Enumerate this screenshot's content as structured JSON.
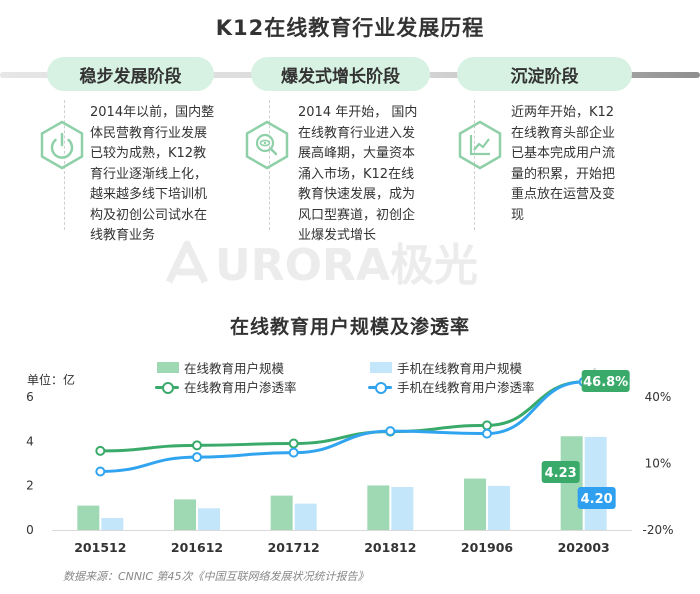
{
  "header": {
    "title": "K12在线教育行业发展历程"
  },
  "stages": [
    {
      "label": "稳步发展阶段",
      "icon": "power-icon",
      "text": "2014年以前，国内整\n体民营教育行业发展\n已较为成熟，K12教\n育行业逐渐线上化，\n越来越多线下培训机\n构及初创公司试水在\n线教育业务"
    },
    {
      "label": "爆发式增长阶段",
      "icon": "magnifier-eye-icon",
      "text": "2014 年开始， 国内\n在线教育行业进入发\n展高峰期，大量资本\n涌入市场，K12在线\n教育快速发展，成为\n风口型赛道，初创企\n业爆发式增长"
    },
    {
      "label": "沉淀阶段",
      "icon": "line-chart-icon",
      "text": "近两年开始，K12\n在线教育头部企业\n已基本完成用户流\n量的积累，开始把\n重点放在运营及变\n现"
    }
  ],
  "watermark": {
    "text": "URORA极光"
  },
  "chart_title": "在线教育用户规模及渗透率",
  "chart_data": {
    "type": "bar",
    "unit_label": "单位：亿",
    "categories": [
      "201512",
      "201612",
      "201712",
      "201812",
      "201906",
      "202003"
    ],
    "series": [
      {
        "name": "在线教育用户规模",
        "kind": "bar",
        "axis": "left",
        "values": [
          1.1,
          1.38,
          1.55,
          2.01,
          2.32,
          4.23
        ]
      },
      {
        "name": "手机在线教育用户规模",
        "kind": "bar",
        "axis": "left",
        "values": [
          0.54,
          0.98,
          1.19,
          1.94,
          1.99,
          4.2
        ]
      },
      {
        "name": "在线教育用户渗透率",
        "kind": "line",
        "axis": "right",
        "values": [
          15.7,
          18.2,
          19.0,
          24.4,
          27.2,
          46.8
        ]
      },
      {
        "name": "手机在线教育用户渗透率",
        "kind": "line",
        "axis": "right",
        "values": [
          6.4,
          12.9,
          14.9,
          24.6,
          23.5,
          46.8
        ]
      }
    ],
    "left_axis": {
      "ticks": [
        "0",
        "2",
        "4",
        "6"
      ],
      "range": [
        0,
        6
      ]
    },
    "right_axis": {
      "ticks": [
        "-20%",
        "10%",
        "40%"
      ],
      "range": [
        -20,
        40
      ]
    },
    "annotations": {
      "bar1_last": "4.23",
      "bar2_last": "4.20",
      "rate_last": "46.8%"
    },
    "colors": {
      "bar1": "#9fd9b3",
      "bar2": "#c4e6fb",
      "line1": "#3aaa6a",
      "line2": "#31a4f0",
      "label1": "#3aaa6a",
      "label2": "#2fa0ef"
    },
    "legend_position": "top"
  },
  "source": "数据来源：CNNIC 第45次《中国互联网络发展状况统计报告》"
}
